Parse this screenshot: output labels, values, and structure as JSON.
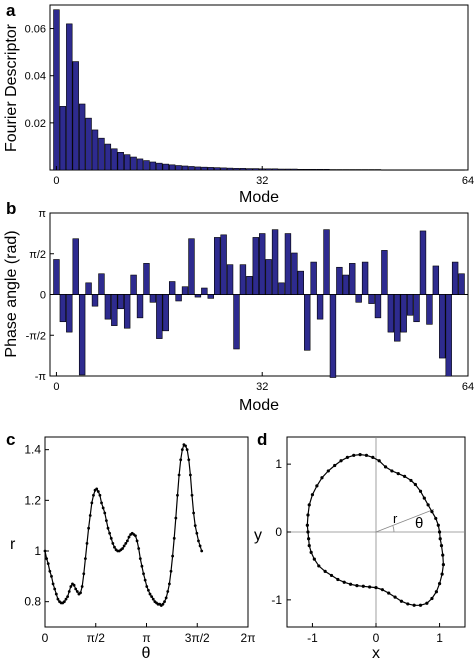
{
  "colors": {
    "bar": "#2e2b8f",
    "line": "#000000",
    "axis": "#000000",
    "refline": "#888888"
  },
  "chart_data": [
    {
      "panel": "a",
      "type": "bar",
      "xlabel": "Mode",
      "ylabel": "Fourier Descriptor",
      "xlim": [
        -1,
        64
      ],
      "ylim": [
        0,
        0.07
      ],
      "xticks": [
        {
          "v": 0,
          "l": "0"
        },
        {
          "v": 32,
          "l": "32"
        },
        {
          "v": 64,
          "l": "64"
        }
      ],
      "yticks": [
        {
          "v": 0.02,
          "l": "0.02"
        },
        {
          "v": 0.04,
          "l": "0.04"
        },
        {
          "v": 0.06,
          "l": "0.06"
        }
      ],
      "x": [
        0,
        1,
        2,
        3,
        4,
        5,
        6,
        7,
        8,
        9,
        10,
        11,
        12,
        13,
        14,
        15,
        16,
        17,
        18,
        19,
        20,
        21,
        22,
        23,
        24,
        25,
        26,
        27,
        28,
        29,
        30,
        31,
        32,
        33,
        34,
        35,
        36,
        37,
        38,
        39,
        40,
        41,
        42,
        43,
        44,
        45,
        46,
        47,
        48,
        49,
        50,
        51,
        52,
        53,
        54,
        55,
        56,
        57,
        58,
        59,
        60,
        61,
        62,
        63
      ],
      "values": [
        0.068,
        0.027,
        0.062,
        0.046,
        0.028,
        0.022,
        0.017,
        0.0135,
        0.011,
        0.009,
        0.0075,
        0.0065,
        0.0055,
        0.0047,
        0.004,
        0.0034,
        0.0029,
        0.0025,
        0.0022,
        0.0019,
        0.0017,
        0.0015,
        0.0013,
        0.0012,
        0.0011,
        0.001,
        0.0009,
        0.0008,
        0.0007,
        0.0007,
        0.0006,
        0.0006,
        0.0005,
        0.0005,
        0.0005,
        0.0004,
        0.0004,
        0.0004,
        0.0003,
        0.0003,
        0.0003,
        0.0003,
        0.0003,
        0.0002,
        0.0002,
        0.0002,
        0.0002,
        0.0002,
        0.0002,
        0.0002,
        0.0002,
        0.0001,
        0.0001,
        0.0001,
        0.0001,
        0.0001,
        0.0001,
        0.0001,
        0.0001,
        0.0001,
        0.0001,
        0.0001,
        0.0001,
        0.0001
      ]
    },
    {
      "panel": "b",
      "type": "bar",
      "xlabel": "Mode",
      "ylabel": "Phase angle (rad)",
      "xlim": [
        -1,
        64
      ],
      "ylim": [
        -3.1416,
        3.1416
      ],
      "xticks": [
        {
          "v": 0,
          "l": "0"
        },
        {
          "v": 32,
          "l": "32"
        },
        {
          "v": 64,
          "l": "64"
        }
      ],
      "yticks": [
        {
          "v": 3.1416,
          "l": "π"
        },
        {
          "v": 1.5708,
          "l": "π/2"
        },
        {
          "v": 0,
          "l": "0"
        },
        {
          "v": -1.5708,
          "l": "-π/2"
        },
        {
          "v": -3.1416,
          "l": "-π"
        }
      ],
      "x": [
        0,
        1,
        2,
        3,
        4,
        5,
        6,
        7,
        8,
        9,
        10,
        11,
        12,
        13,
        14,
        15,
        16,
        17,
        18,
        19,
        20,
        21,
        22,
        23,
        24,
        25,
        26,
        27,
        28,
        29,
        30,
        31,
        32,
        33,
        34,
        35,
        36,
        37,
        38,
        39,
        40,
        41,
        42,
        43,
        44,
        45,
        46,
        47,
        48,
        49,
        50,
        51,
        52,
        53,
        54,
        55,
        56,
        57,
        58,
        59,
        60,
        61,
        62,
        63
      ],
      "values": [
        1.35,
        -1.05,
        -1.45,
        2.15,
        -3.1,
        0.45,
        -0.45,
        0.8,
        -0.95,
        -1.2,
        -0.55,
        -1.3,
        0.75,
        -0.9,
        1.2,
        -0.3,
        -1.7,
        -1.4,
        0.5,
        -0.25,
        0.3,
        2.15,
        -0.1,
        0.25,
        -0.15,
        2.2,
        2.3,
        1.15,
        -2.1,
        1.15,
        0.7,
        2.2,
        2.35,
        1.35,
        2.5,
        0.45,
        2.35,
        1.6,
        0.9,
        -2.15,
        1.25,
        -0.95,
        2.5,
        -3.2,
        1.05,
        0.75,
        1.2,
        -0.3,
        1.25,
        -0.35,
        -0.9,
        1.7,
        -1.45,
        -1.8,
        -1.45,
        -0.8,
        -1.05,
        2.45,
        -1.15,
        1.1,
        -2.45,
        -3.15,
        1.25,
        0.8
      ]
    },
    {
      "panel": "c",
      "type": "line",
      "xlabel": "θ",
      "ylabel": "r",
      "xlim": [
        0,
        6.2832
      ],
      "ylim": [
        0.7,
        1.45
      ],
      "xticks": [
        {
          "v": 0,
          "l": "0"
        },
        {
          "v": 1.5708,
          "l": "π/2"
        },
        {
          "v": 3.1416,
          "l": "π"
        },
        {
          "v": 4.7124,
          "l": "3π/2"
        },
        {
          "v": 6.2832,
          "l": "2π"
        }
      ],
      "yticks": [
        {
          "v": 0.8,
          "l": "0.8"
        },
        {
          "v": 1.0,
          "l": "1"
        },
        {
          "v": 1.2,
          "l": "1.2"
        },
        {
          "v": 1.4,
          "l": "1.4"
        }
      ],
      "points": [
        [
          0,
          1.0
        ],
        [
          0.05,
          0.97
        ],
        [
          0.1,
          0.95
        ],
        [
          0.15,
          0.92
        ],
        [
          0.2,
          0.9
        ],
        [
          0.25,
          0.87
        ],
        [
          0.3,
          0.85
        ],
        [
          0.35,
          0.83
        ],
        [
          0.4,
          0.81
        ],
        [
          0.45,
          0.8
        ],
        [
          0.5,
          0.795
        ],
        [
          0.55,
          0.795
        ],
        [
          0.6,
          0.8
        ],
        [
          0.65,
          0.81
        ],
        [
          0.7,
          0.82
        ],
        [
          0.75,
          0.84
        ],
        [
          0.8,
          0.86
        ],
        [
          0.85,
          0.87
        ],
        [
          0.9,
          0.865
        ],
        [
          0.95,
          0.85
        ],
        [
          1.0,
          0.84
        ],
        [
          1.05,
          0.83
        ],
        [
          1.1,
          0.835
        ],
        [
          1.15,
          0.86
        ],
        [
          1.2,
          0.91
        ],
        [
          1.25,
          0.97
        ],
        [
          1.3,
          1.03
        ],
        [
          1.35,
          1.09
        ],
        [
          1.4,
          1.14
        ],
        [
          1.45,
          1.19
        ],
        [
          1.5,
          1.22
        ],
        [
          1.55,
          1.24
        ],
        [
          1.6,
          1.245
        ],
        [
          1.65,
          1.235
        ],
        [
          1.7,
          1.22
        ],
        [
          1.75,
          1.19
        ],
        [
          1.8,
          1.17
        ],
        [
          1.85,
          1.15
        ],
        [
          1.9,
          1.12
        ],
        [
          1.95,
          1.09
        ],
        [
          2.0,
          1.07
        ],
        [
          2.05,
          1.05
        ],
        [
          2.1,
          1.03
        ],
        [
          2.15,
          1.015
        ],
        [
          2.2,
          1.005
        ],
        [
          2.25,
          1.0
        ],
        [
          2.3,
          1.0
        ],
        [
          2.35,
          1.005
        ],
        [
          2.4,
          1.01
        ],
        [
          2.45,
          1.02
        ],
        [
          2.5,
          1.03
        ],
        [
          2.55,
          1.04
        ],
        [
          2.6,
          1.055
        ],
        [
          2.65,
          1.065
        ],
        [
          2.7,
          1.07
        ],
        [
          2.75,
          1.065
        ],
        [
          2.8,
          1.06
        ],
        [
          2.85,
          1.04
        ],
        [
          2.9,
          1.01
        ],
        [
          2.95,
          0.97
        ],
        [
          3.0,
          0.94
        ],
        [
          3.05,
          0.91
        ],
        [
          3.1,
          0.885
        ],
        [
          3.15,
          0.86
        ],
        [
          3.2,
          0.845
        ],
        [
          3.25,
          0.83
        ],
        [
          3.3,
          0.82
        ],
        [
          3.35,
          0.81
        ],
        [
          3.4,
          0.8
        ],
        [
          3.45,
          0.795
        ],
        [
          3.5,
          0.79
        ],
        [
          3.55,
          0.79
        ],
        [
          3.6,
          0.785
        ],
        [
          3.65,
          0.79
        ],
        [
          3.7,
          0.8
        ],
        [
          3.75,
          0.815
        ],
        [
          3.8,
          0.84
        ],
        [
          3.85,
          0.87
        ],
        [
          3.9,
          0.92
        ],
        [
          3.95,
          0.98
        ],
        [
          4.0,
          1.05
        ],
        [
          4.05,
          1.13
        ],
        [
          4.1,
          1.22
        ],
        [
          4.15,
          1.3
        ],
        [
          4.2,
          1.36
        ],
        [
          4.25,
          1.4
        ],
        [
          4.3,
          1.42
        ],
        [
          4.35,
          1.415
        ],
        [
          4.4,
          1.4
        ],
        [
          4.45,
          1.36
        ],
        [
          4.5,
          1.3
        ],
        [
          4.55,
          1.22
        ],
        [
          4.6,
          1.15
        ],
        [
          4.65,
          1.1
        ],
        [
          4.7,
          1.07
        ],
        [
          4.75,
          1.04
        ],
        [
          4.8,
          1.02
        ],
        [
          4.85,
          1.0
        ]
      ]
    },
    {
      "panel": "d",
      "type": "line",
      "xlabel": "x",
      "ylabel": "y",
      "xlim": [
        -1.4,
        1.4
      ],
      "ylim": [
        -1.4,
        1.4
      ],
      "xticks": [
        {
          "v": -1,
          "l": "-1"
        },
        {
          "v": 0,
          "l": "0"
        },
        {
          "v": 1,
          "l": "1"
        }
      ],
      "yticks": [
        {
          "v": 1,
          "l": "1"
        },
        {
          "v": 0,
          "l": "0"
        },
        {
          "v": -1,
          "l": "-1"
        }
      ],
      "annotations": [
        {
          "text": "r"
        },
        {
          "text": "θ"
        }
      ],
      "points": [
        [
          1.0,
          0.0
        ],
        [
          0.98,
          0.1
        ],
        [
          0.94,
          0.2
        ],
        [
          0.88,
          0.3
        ],
        [
          0.82,
          0.4
        ],
        [
          0.76,
          0.5
        ],
        [
          0.7,
          0.6
        ],
        [
          0.62,
          0.7
        ],
        [
          0.55,
          0.76
        ],
        [
          0.45,
          0.82
        ],
        [
          0.35,
          0.86
        ],
        [
          0.25,
          0.9
        ],
        [
          0.15,
          0.96
        ],
        [
          0.05,
          1.05
        ],
        [
          -0.05,
          1.1
        ],
        [
          -0.15,
          1.13
        ],
        [
          -0.25,
          1.14
        ],
        [
          -0.35,
          1.13
        ],
        [
          -0.45,
          1.1
        ],
        [
          -0.55,
          1.05
        ],
        [
          -0.65,
          0.98
        ],
        [
          -0.75,
          0.9
        ],
        [
          -0.85,
          0.8
        ],
        [
          -0.93,
          0.68
        ],
        [
          -1.0,
          0.55
        ],
        [
          -1.05,
          0.4
        ],
        [
          -1.07,
          0.25
        ],
        [
          -1.08,
          0.1
        ],
        [
          -1.07,
          0.0
        ],
        [
          -1.06,
          -0.1
        ],
        [
          -1.05,
          -0.2
        ],
        [
          -1.02,
          -0.3
        ],
        [
          -0.97,
          -0.4
        ],
        [
          -0.9,
          -0.5
        ],
        [
          -0.8,
          -0.58
        ],
        [
          -0.7,
          -0.64
        ],
        [
          -0.6,
          -0.7
        ],
        [
          -0.5,
          -0.74
        ],
        [
          -0.4,
          -0.77
        ],
        [
          -0.3,
          -0.79
        ],
        [
          -0.2,
          -0.8
        ],
        [
          -0.1,
          -0.81
        ],
        [
          0.0,
          -0.82
        ],
        [
          0.1,
          -0.85
        ],
        [
          0.2,
          -0.9
        ],
        [
          0.3,
          -0.96
        ],
        [
          0.4,
          -1.02
        ],
        [
          0.5,
          -1.06
        ],
        [
          0.6,
          -1.08
        ],
        [
          0.7,
          -1.08
        ],
        [
          0.8,
          -1.05
        ],
        [
          0.88,
          -0.98
        ],
        [
          0.95,
          -0.88
        ],
        [
          1.0,
          -0.76
        ],
        [
          1.04,
          -0.62
        ],
        [
          1.06,
          -0.48
        ],
        [
          1.05,
          -0.34
        ],
        [
          1.03,
          -0.2
        ],
        [
          1.01,
          -0.1
        ]
      ]
    }
  ],
  "panels": {
    "a": "a",
    "b": "b",
    "c": "c",
    "d": "d"
  }
}
